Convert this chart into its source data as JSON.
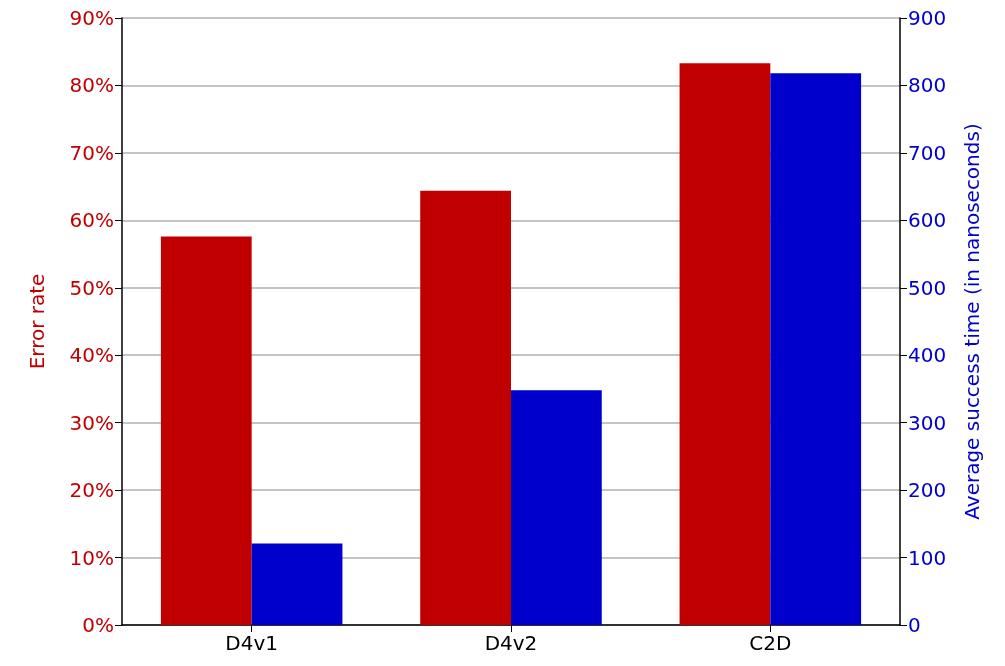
{
  "chart_data": {
    "type": "bar",
    "ylabel": "Error rate",
    "y2label": "Average success time (in nanoseconds)",
    "categories": [
      "D4v1",
      "D4v2",
      "C2D"
    ],
    "series": [
      {
        "color": "#c00000",
        "values": [
          57.6,
          64.4,
          83.3
        ]
      },
      {
        "color": "#0000cc",
        "values": [
          121,
          348,
          818
        ],
        "axis": "y2"
      }
    ],
    "ylim": [
      0,
      90
    ],
    "yticks": [
      {
        "value": 0,
        "label": "0%"
      },
      {
        "value": 10,
        "label": "10%"
      },
      {
        "value": 20,
        "label": "20%"
      },
      {
        "value": 30,
        "label": "30%"
      },
      {
        "value": 40,
        "label": "40%"
      },
      {
        "value": 50,
        "label": "50%"
      },
      {
        "value": 60,
        "label": "60%"
      },
      {
        "value": 70,
        "label": "70%"
      },
      {
        "value": 80,
        "label": "80%"
      },
      {
        "value": 90,
        "label": "90%"
      }
    ],
    "y2lim": [
      0,
      900
    ],
    "y2ticks": [
      0,
      100,
      200,
      300,
      400,
      500,
      600,
      700,
      800,
      900
    ],
    "grid": "y"
  }
}
